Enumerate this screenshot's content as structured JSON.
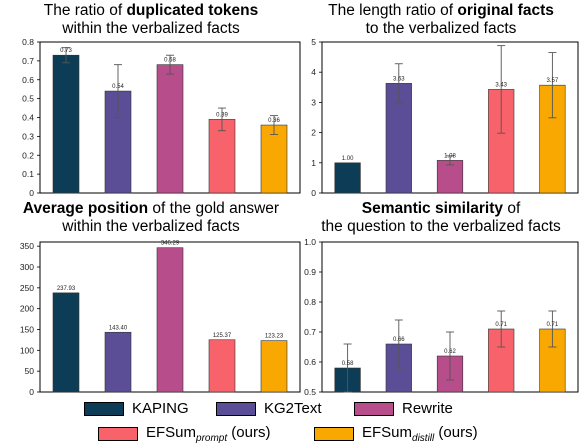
{
  "chart_data": [
    {
      "type": "bar",
      "title_parts": [
        {
          "text": "The ratio of ",
          "bold": false
        },
        {
          "text": "duplicated tokens",
          "bold": true
        }
      ],
      "title_line2": "within the verbalized facts",
      "categories": [
        "KAPING",
        "KG2Text",
        "Rewrite",
        "EFSum_prompt (ours)",
        "EFSum_distill (ours)"
      ],
      "values": [
        0.73,
        0.54,
        0.68,
        0.39,
        0.36
      ],
      "labels": [
        "0.73",
        "0.54",
        "0.68",
        "0.39",
        "0.36"
      ],
      "errors": [
        0.04,
        0.14,
        0.05,
        0.06,
        0.05
      ],
      "ylim": [
        0,
        0.8
      ],
      "yticks": [
        "0",
        "0.1",
        "0.2",
        "0.3",
        "0.4",
        "0.5",
        "0.6",
        "0.7",
        "0.8"
      ],
      "ytick_values": [
        0,
        0.1,
        0.2,
        0.3,
        0.4,
        0.5,
        0.6,
        0.7,
        0.8
      ]
    },
    {
      "type": "bar",
      "title_parts": [
        {
          "text": "The length ratio of ",
          "bold": false
        },
        {
          "text": "original facts",
          "bold": true
        }
      ],
      "title_line2": "to the verbalized facts",
      "categories": [
        "KAPING",
        "KG2Text",
        "Rewrite",
        "EFSum_prompt (ours)",
        "EFSum_distill (ours)"
      ],
      "values": [
        1.0,
        3.63,
        1.08,
        3.43,
        3.57
      ],
      "labels": [
        "1.00",
        "3.63",
        "1.08",
        "3.43",
        "3.57"
      ],
      "errors": [
        0,
        0.65,
        0.15,
        1.45,
        1.08
      ],
      "ylim": [
        0,
        5
      ],
      "yticks": [
        "0",
        "1",
        "2",
        "3",
        "4",
        "5"
      ],
      "ytick_values": [
        0,
        1,
        2,
        3,
        4,
        5
      ]
    },
    {
      "type": "bar",
      "title_parts": [
        {
          "text": "Average position",
          "bold": true
        },
        {
          "text": " of the gold answer",
          "bold": false
        }
      ],
      "title_line2": "within the verbalized facts",
      "categories": [
        "KAPING",
        "KG2Text",
        "Rewrite",
        "EFSum_prompt (ours)",
        "EFSum_distill (ours)"
      ],
      "values": [
        237.93,
        143.4,
        346.29,
        125.37,
        123.23
      ],
      "labels": [
        "237.93",
        "143.40",
        "346.29",
        "125.37",
        "123.23"
      ],
      "errors": [
        0,
        0,
        0,
        0,
        0
      ],
      "ylim": [
        0,
        360
      ],
      "yticks": [
        "0",
        "50",
        "100",
        "150",
        "200",
        "250",
        "300",
        "350"
      ],
      "ytick_values": [
        0,
        50,
        100,
        150,
        200,
        250,
        300,
        350
      ]
    },
    {
      "type": "bar",
      "title_parts": [
        {
          "text": "Semantic similarity",
          "bold": true
        },
        {
          "text": " of",
          "bold": false
        }
      ],
      "title_line2": "the question to the verbalized facts",
      "categories": [
        "KAPING",
        "KG2Text",
        "Rewrite",
        "EFSum_prompt (ours)",
        "EFSum_distill (ours)"
      ],
      "values": [
        0.58,
        0.66,
        0.62,
        0.71,
        0.71
      ],
      "labels": [
        "0.58",
        "0.66",
        "0.62",
        "0.71",
        "0.71"
      ],
      "errors": [
        0.08,
        0.08,
        0.08,
        0.06,
        0.06
      ],
      "ylim": [
        0.5,
        1.0
      ],
      "yticks": [
        "0.5",
        "0.6",
        "0.7",
        "0.8",
        "0.9",
        "1.0"
      ],
      "ytick_values": [
        0.5,
        0.6,
        0.7,
        0.8,
        0.9,
        1.0
      ]
    }
  ],
  "colors": [
    "#0d3d56",
    "#5b4e96",
    "#b84d8c",
    "#f8636b",
    "#f8a800"
  ],
  "legend": [
    {
      "label": "KAPING",
      "sub": ""
    },
    {
      "label": "KG2Text",
      "sub": ""
    },
    {
      "label": "Rewrite",
      "sub": ""
    },
    {
      "label": "EFSum",
      "sub": "prompt",
      "suffix": " (ours)"
    },
    {
      "label": "EFSum",
      "sub": "distill",
      "suffix": " (ours)"
    }
  ]
}
